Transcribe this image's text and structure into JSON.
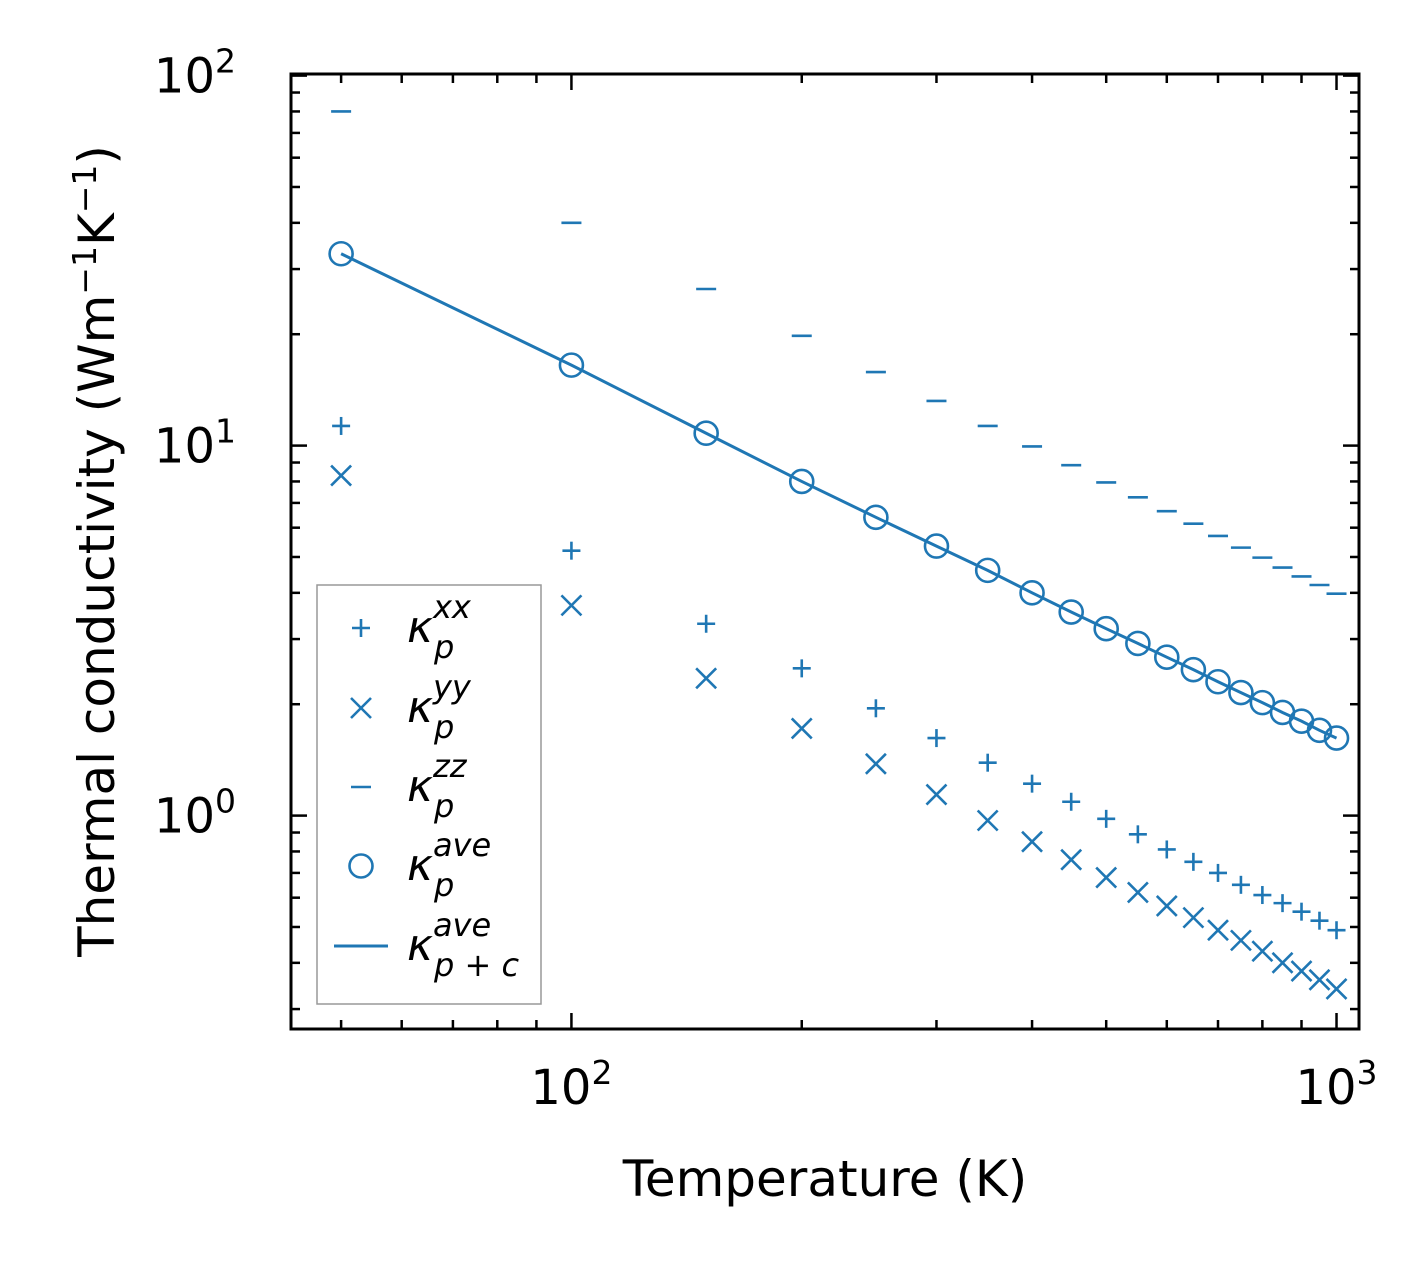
{
  "chart_data": {
    "type": "scatter",
    "xscale": "log",
    "yscale": "log",
    "xlabel": "Temperature (K)",
    "ylabel": {
      "base": "Thermal conductivity (Wm",
      "sup1": "−1",
      "mid": "K",
      "sup2": "−1",
      "end": ")"
    },
    "xlim": [
      43,
      1070
    ],
    "ylim": [
      0.265,
      101
    ],
    "xticks": [
      {
        "base": "10",
        "exp": "2",
        "value": 100
      },
      {
        "base": "10",
        "exp": "3",
        "value": 1000
      }
    ],
    "yticks": [
      {
        "base": "10",
        "exp": "0",
        "value": 1
      },
      {
        "base": "10",
        "exp": "1",
        "value": 10
      },
      {
        "base": "10",
        "exp": "2",
        "value": 100
      }
    ],
    "x": [
      50,
      100,
      150,
      200,
      250,
      300,
      350,
      400,
      450,
      500,
      550,
      600,
      650,
      700,
      750,
      800,
      850,
      900,
      950,
      1000
    ],
    "series": [
      {
        "name": "kxx",
        "marker": "plus",
        "values": [
          11.3,
          5.2,
          3.3,
          2.5,
          1.95,
          1.62,
          1.39,
          1.22,
          1.09,
          0.98,
          0.89,
          0.81,
          0.75,
          0.7,
          0.65,
          0.61,
          0.58,
          0.55,
          0.52,
          0.49
        ]
      },
      {
        "name": "kyy",
        "marker": "x",
        "values": [
          8.3,
          3.7,
          2.35,
          1.72,
          1.38,
          1.14,
          0.97,
          0.85,
          0.76,
          0.68,
          0.62,
          0.57,
          0.53,
          0.49,
          0.46,
          0.43,
          0.4,
          0.38,
          0.36,
          0.34
        ]
      },
      {
        "name": "kzz",
        "marker": "hline",
        "values": [
          80,
          40,
          26.5,
          19.8,
          15.8,
          13.2,
          11.3,
          9.95,
          8.85,
          7.95,
          7.25,
          6.65,
          6.15,
          5.7,
          5.3,
          4.98,
          4.68,
          4.43,
          4.2,
          3.98
        ]
      },
      {
        "name": "kave",
        "marker": "circle",
        "values": [
          33,
          16.5,
          10.8,
          8.0,
          6.4,
          5.35,
          4.6,
          4.0,
          3.55,
          3.2,
          2.92,
          2.68,
          2.48,
          2.3,
          2.15,
          2.02,
          1.9,
          1.8,
          1.7,
          1.62
        ]
      },
      {
        "name": "kave_pc",
        "marker": "line",
        "values": [
          33,
          16.5,
          10.8,
          8.0,
          6.4,
          5.35,
          4.6,
          4.0,
          3.55,
          3.2,
          2.92,
          2.68,
          2.48,
          2.3,
          2.15,
          2.02,
          1.9,
          1.8,
          1.7,
          1.62
        ]
      }
    ],
    "legend": {
      "location": "lower-left",
      "entries": [
        {
          "series": "kxx",
          "symbol": "κ",
          "sub": "p",
          "sup": "xx"
        },
        {
          "series": "kyy",
          "symbol": "κ",
          "sub": "p",
          "sup": "yy"
        },
        {
          "series": "kzz",
          "symbol": "κ",
          "sub": "p",
          "sup": "zz"
        },
        {
          "series": "kave",
          "symbol": "κ",
          "sub": "p",
          "sup": "ave"
        },
        {
          "series": "kave_pc",
          "symbol": "κ",
          "sub": "p + c",
          "sup": "ave"
        }
      ]
    },
    "color": "#1f77b4",
    "grid": false
  }
}
